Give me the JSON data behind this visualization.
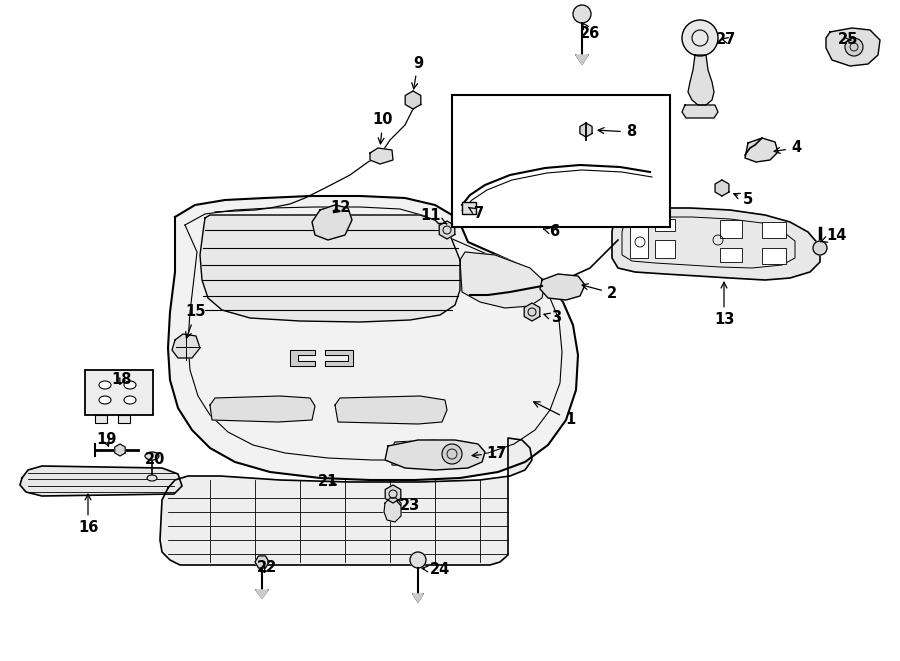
{
  "bg_color": "#ffffff",
  "line_color": "#000000",
  "label_fontsize": 10.5,
  "figsize": [
    9.0,
    6.61
  ],
  "dpi": 100,
  "xlim": [
    0,
    900
  ],
  "ylim": [
    661,
    0
  ]
}
